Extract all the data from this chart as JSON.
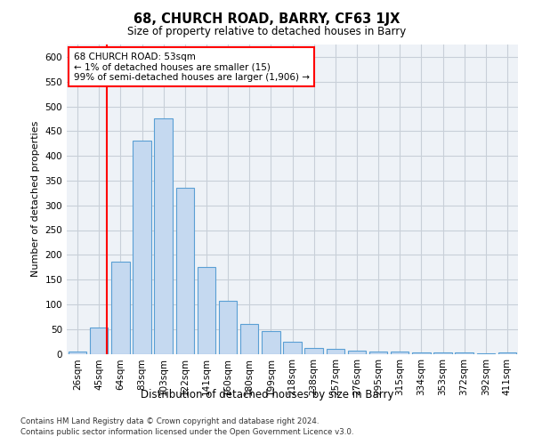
{
  "title": "68, CHURCH ROAD, BARRY, CF63 1JX",
  "subtitle": "Size of property relative to detached houses in Barry",
  "xlabel": "Distribution of detached houses by size in Barry",
  "ylabel": "Number of detached properties",
  "bar_color": "#c5d9f0",
  "bar_edge_color": "#5a9fd4",
  "categories": [
    "26sqm",
    "45sqm",
    "64sqm",
    "83sqm",
    "103sqm",
    "122sqm",
    "141sqm",
    "160sqm",
    "180sqm",
    "199sqm",
    "218sqm",
    "238sqm",
    "257sqm",
    "276sqm",
    "295sqm",
    "315sqm",
    "334sqm",
    "353sqm",
    "372sqm",
    "392sqm",
    "411sqm"
  ],
  "values": [
    5,
    53,
    187,
    430,
    475,
    335,
    175,
    107,
    60,
    45,
    25,
    12,
    10,
    6,
    5,
    4,
    2,
    2,
    2,
    1,
    2
  ],
  "ylim": [
    0,
    625
  ],
  "yticks": [
    0,
    50,
    100,
    150,
    200,
    250,
    300,
    350,
    400,
    450,
    500,
    550,
    600
  ],
  "red_line_x": 1.35,
  "annotation_line1": "68 CHURCH ROAD: 53sqm",
  "annotation_line2": "← 1% of detached houses are smaller (15)",
  "annotation_line3": "99% of semi-detached houses are larger (1,906) →",
  "footer_line1": "Contains HM Land Registry data © Crown copyright and database right 2024.",
  "footer_line2": "Contains public sector information licensed under the Open Government Licence v3.0.",
  "background_color": "#eef2f7",
  "grid_color": "#c8cfd8"
}
